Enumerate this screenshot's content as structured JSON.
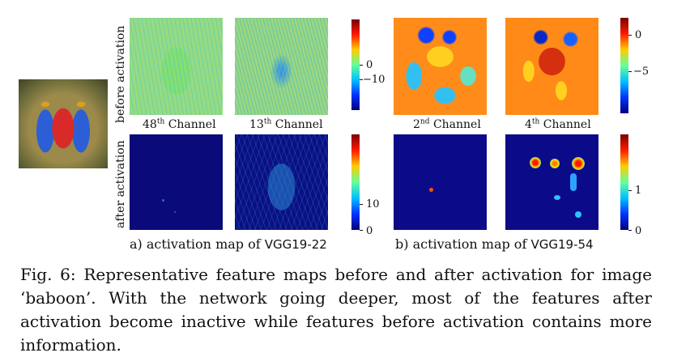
{
  "figure": {
    "row_labels": {
      "before": "before activation",
      "after": "after activation"
    },
    "channels": {
      "c48_num": "48",
      "c48_sup": "th",
      "c48_word": "Channel",
      "c13_num": "13",
      "c13_sup": "th",
      "c13_word": "Channel",
      "c2_num": "2",
      "c2_sup": "nd",
      "c2_word": "Channel",
      "c4_num": "4",
      "c4_sup": "th",
      "c4_word": "Channel"
    },
    "colorbars": {
      "a_before": [
        "0",
        "−10"
      ],
      "a_after": [
        "10",
        "0"
      ],
      "b_before": [
        "0",
        "−5"
      ],
      "b_after": [
        "1",
        "0"
      ]
    },
    "sublabels": {
      "a_prefix": "a) activation map of",
      "a_model": "VGG19-22",
      "b_prefix": "b) activation map of",
      "b_model": "VGG19-54"
    }
  },
  "caption": {
    "text": "Fig. 6: Representative feature maps before and after activation for image ‘baboon’. With the network going deeper, most of the features after activation become inactive while features before activation contains more information."
  }
}
